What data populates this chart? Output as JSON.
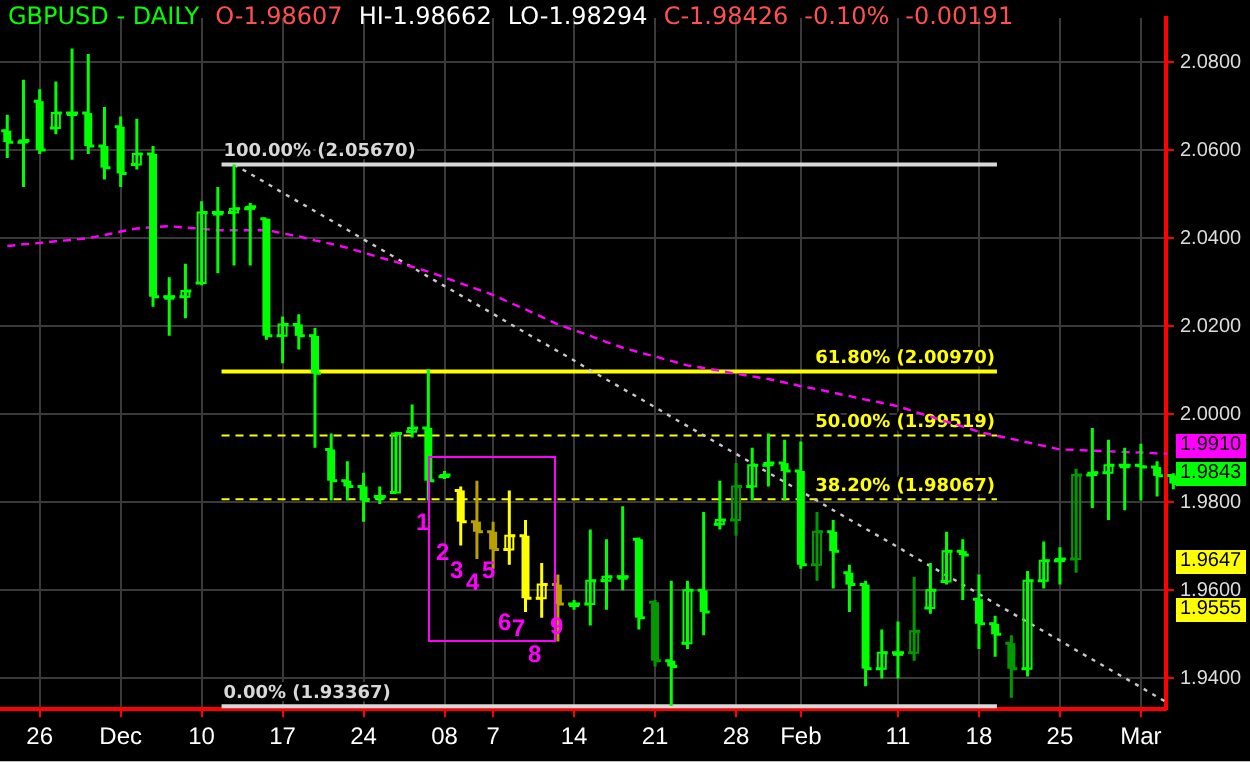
{
  "chart_data": {
    "type": "candlestick",
    "title": "GBPUSD - DAILY",
    "categories": [
      null,
      null,
      "26",
      null,
      null,
      null,
      null,
      "Dec",
      null,
      null,
      null,
      null,
      "10",
      null,
      null,
      null,
      null,
      "17",
      null,
      null,
      null,
      null,
      "24",
      null,
      null,
      null,
      null,
      "08",
      null,
      null,
      "7",
      null,
      null,
      null,
      null,
      "14",
      null,
      null,
      null,
      null,
      "21",
      null,
      null,
      null,
      null,
      "28",
      null,
      null,
      null,
      "Feb",
      null,
      null,
      null,
      null,
      null,
      "11",
      null,
      null,
      null,
      null,
      "18",
      null,
      null,
      null,
      null,
      "25",
      null,
      null,
      null,
      null,
      "Mar",
      null,
      null
    ],
    "ohlc": [
      [
        2.0644,
        2.068,
        2.0582,
        2.0618
      ],
      [
        2.0618,
        2.076,
        2.0516,
        2.0622
      ],
      [
        2.0711,
        2.0738,
        2.0591,
        2.06
      ],
      [
        2.065,
        2.0756,
        2.0636,
        2.0684
      ],
      [
        2.0684,
        2.0831,
        2.0578,
        2.0684
      ],
      [
        2.0684,
        2.0818,
        2.0591,
        2.0609
      ],
      [
        2.0609,
        2.0698,
        2.0533,
        2.056
      ],
      [
        2.0653,
        2.0676,
        2.0516,
        2.0547
      ],
      [
        2.0567,
        2.0671,
        2.0556,
        2.0591
      ],
      [
        2.0591,
        2.0609,
        2.0244,
        2.0267
      ],
      [
        2.0267,
        2.0311,
        2.0178,
        2.0267
      ],
      [
        2.0267,
        2.0342,
        2.0218,
        2.028
      ],
      [
        2.0298,
        2.0484,
        2.0293,
        2.0458
      ],
      [
        2.0458,
        2.0516,
        2.032,
        2.0458
      ],
      [
        2.0458,
        2.0567,
        2.0338,
        2.0467
      ],
      [
        2.0467,
        2.048,
        2.0338,
        2.0471
      ],
      [
        2.0444,
        2.0444,
        2.0169,
        2.0178
      ],
      [
        2.0178,
        2.0222,
        2.0116,
        2.0204
      ],
      [
        2.0204,
        2.0227,
        2.0147,
        2.0178
      ],
      [
        2.0178,
        2.0196,
        1.9924,
        2.0093
      ],
      [
        1.992,
        1.9956,
        1.9804,
        1.9849
      ],
      [
        1.9849,
        1.9893,
        1.9804,
        1.9836
      ],
      [
        1.9836,
        1.9867,
        1.9756,
        1.9804
      ],
      [
        1.9813,
        1.9836,
        1.9796,
        1.9813
      ],
      [
        1.9822,
        1.996,
        1.9822,
        1.9956
      ],
      [
        1.996,
        2.0022,
        1.9947,
        1.9969
      ],
      [
        1.9969,
        2.0102,
        1.9804,
        1.9849
      ],
      [
        1.9858,
        1.9871,
        1.9853,
        1.9862
      ],
      [
        1.9827,
        1.9836,
        1.9702,
        1.9756
      ],
      [
        1.9756,
        1.9849,
        1.9671,
        1.9733
      ],
      [
        1.9733,
        1.9756,
        1.9649,
        1.9693
      ],
      [
        1.9693,
        1.9827,
        1.9658,
        1.9724
      ],
      [
        1.9724,
        1.976,
        1.9551,
        1.9582
      ],
      [
        1.9582,
        1.9662,
        1.9538,
        1.9613
      ],
      [
        1.9613,
        1.9636,
        1.9484,
        1.9569
      ],
      [
        1.9569,
        1.9578,
        1.9556,
        1.9569
      ],
      [
        1.9569,
        1.9738,
        1.952,
        1.9622
      ],
      [
        1.9622,
        1.9716,
        1.9556,
        1.9631
      ],
      [
        1.9631,
        1.9791,
        1.96,
        1.9631
      ],
      [
        1.9716,
        1.972,
        1.9511,
        1.9538
      ],
      [
        1.9573,
        1.9578,
        1.9427,
        1.944
      ],
      [
        1.944,
        1.9622,
        1.9337,
        1.9427
      ],
      [
        1.948,
        1.9622,
        1.9467,
        1.96
      ],
      [
        1.96,
        1.9778,
        1.9498,
        1.9551
      ],
      [
        1.975,
        1.9849,
        1.9738,
        1.976
      ],
      [
        1.976,
        1.9889,
        1.9724,
        1.9836
      ],
      [
        1.9836,
        1.9924,
        1.9804,
        1.9884
      ],
      [
        1.9884,
        1.9956,
        1.9836,
        1.9889
      ],
      [
        1.9889,
        1.9942,
        1.9804,
        1.9871
      ],
      [
        1.9871,
        1.9938,
        1.9649,
        1.9658
      ],
      [
        1.9658,
        1.9778,
        1.9622,
        1.9733
      ],
      [
        1.9733,
        1.976,
        1.9604,
        1.9689
      ],
      [
        1.964,
        1.9658,
        1.9551,
        1.9613
      ],
      [
        1.9613,
        1.9622,
        1.9382,
        1.9422
      ],
      [
        1.9422,
        1.9511,
        1.94,
        1.9458
      ],
      [
        1.9458,
        1.9529,
        1.94,
        1.9458
      ],
      [
        1.9458,
        1.9631,
        1.944,
        1.9507
      ],
      [
        1.956,
        1.9662,
        1.9547,
        1.96
      ],
      [
        1.962,
        1.9733,
        1.9613,
        1.9689
      ],
      [
        1.9689,
        1.9716,
        1.9578,
        1.968
      ],
      [
        1.958,
        1.9636,
        1.9467,
        1.9524
      ],
      [
        1.9524,
        1.9542,
        1.9449,
        1.95
      ],
      [
        1.948,
        1.9498,
        1.9356,
        1.9422
      ],
      [
        1.9422,
        1.9644,
        1.9404,
        1.9622
      ],
      [
        1.9622,
        1.9711,
        1.9604,
        1.9667
      ],
      [
        1.9667,
        1.9698,
        1.9613,
        1.9671
      ],
      [
        1.9671,
        1.9876,
        1.964,
        1.9862
      ],
      [
        1.9862,
        1.9969,
        1.9787,
        1.9867
      ],
      [
        1.9867,
        1.9942,
        1.976,
        1.9884
      ],
      [
        1.9884,
        1.9924,
        1.9782,
        1.9884
      ],
      [
        1.9884,
        1.9933,
        1.9804,
        1.988
      ],
      [
        1.988,
        1.9893,
        1.9813,
        1.986
      ],
      [
        1.98607,
        1.98662,
        1.98294,
        1.98426
      ]
    ],
    "colors": [
      "#00ff00",
      "#00ff00",
      "#00ff00",
      "#00ff00",
      "#00ff00",
      "#00ff00",
      "#00ff00",
      "#00ff00",
      "#00ff00",
      "#00ff00",
      "#00ff00",
      "#00ff00",
      "#00ff00",
      "#00ff00",
      "#00ff00",
      "#00ff00",
      "#00ff00",
      "#00ff00",
      "#00ff00",
      "#00ff00",
      "#00ff00",
      "#00ff00",
      "#00ff00",
      "#00ff00",
      "#00ff00",
      "#00ff00",
      "#00ff00",
      "#00ff00",
      "#ffff00",
      "#b8a000",
      "#b8a000",
      "#ffff00",
      "#ffff00",
      "#ffff00",
      "#b8a000",
      "#00ff00",
      "#00ff00",
      "#00ff00",
      "#00ff00",
      "#00ff00",
      "#009900",
      "#00ff00",
      "#00ff00",
      "#00ff00",
      "#00ff00",
      "#009900",
      "#00ff00",
      "#00ff00",
      "#00ff00",
      "#00ff00",
      "#009900",
      "#00ff00",
      "#00ff00",
      "#00ff00",
      "#00ff00",
      "#00ff00",
      "#009900",
      "#00ff00",
      "#00ff00",
      "#00ff00",
      "#00ff00",
      "#00ff00",
      "#009900",
      "#00ff00",
      "#00ff00",
      "#00ff00",
      "#009900",
      "#00ff00",
      "#00ff00",
      "#00ff00",
      "#00ff00",
      "#00ff00",
      "#00ff00"
    ],
    "series": [
      {
        "type": "line",
        "color": "#ff00ff",
        "line_style": "dashed",
        "values": [
          2.0382,
          2.0386,
          2.0389,
          2.0393,
          2.0396,
          2.04,
          2.0407,
          2.0415,
          2.0422,
          2.0425,
          2.0427,
          2.0424,
          2.0421,
          2.0418,
          2.0418,
          2.0418,
          2.0418,
          2.0411,
          2.0404,
          2.0395,
          2.0387,
          2.0378,
          2.0367,
          2.0356,
          2.0346,
          2.0335,
          2.0324,
          2.0311,
          2.0297,
          2.0284,
          2.0271,
          2.0254,
          2.0238,
          2.0221,
          2.0204,
          2.0191,
          2.0178,
          2.0164,
          2.0151,
          2.0141,
          2.0131,
          2.0121,
          2.0111,
          2.0105,
          2.0099,
          2.0092,
          2.0086,
          2.008,
          2.0072,
          2.0064,
          2.0057,
          2.0049,
          2.0041,
          2.0033,
          2.0026,
          2.0018,
          2.0006,
          1.9995,
          1.9983,
          1.9972,
          1.996,
          1.9952,
          1.9944,
          1.9936,
          1.9928,
          1.992,
          1.9919,
          1.9917,
          1.9916,
          1.9914,
          1.9913,
          1.9911,
          1.991
        ]
      },
      {
        "type": "line",
        "color": "#c8c8c8",
        "line_style": "dotted",
        "values": [
          null,
          null,
          null,
          null,
          null,
          null,
          null,
          null,
          null,
          null,
          null,
          null,
          null,
          null,
          2.0567,
          2.0546,
          2.0525,
          2.0503,
          2.0482,
          2.0461,
          2.044,
          2.0419,
          2.0397,
          2.0376,
          2.0355,
          2.0334,
          2.0312,
          2.0291,
          2.027,
          2.0249,
          2.0228,
          2.0206,
          2.0185,
          2.0164,
          2.0143,
          2.0122,
          2.01,
          2.0079,
          2.0058,
          2.0037,
          2.0016,
          1.9994,
          1.9973,
          1.9952,
          1.9931,
          1.991,
          1.9888,
          1.9867,
          1.9846,
          1.9825,
          1.9804,
          1.9782,
          1.9761,
          1.974,
          1.9719,
          1.9698,
          1.9676,
          1.9655,
          1.9634,
          1.9613,
          1.9592,
          1.957,
          1.9549,
          1.9528,
          1.9507,
          1.9486,
          1.9464,
          1.9443,
          1.9422,
          1.9401,
          1.938,
          1.9358,
          1.9337
        ]
      }
    ],
    "ref_lines": [
      {
        "axis": "y",
        "value": 2.0567,
        "label": "100.00% (2.05670)",
        "color": "#d8d8d8",
        "line_style": "solid"
      },
      {
        "axis": "y",
        "value": 2.0097,
        "label": "61.80% (2.00970)",
        "color": "#ffff00",
        "line_style": "solid"
      },
      {
        "axis": "y",
        "value": 1.99519,
        "label": "50.00% (1.99519)",
        "color": "#ffff00",
        "line_style": "dashed"
      },
      {
        "axis": "y",
        "value": 1.98067,
        "label": "38.20% (1.98067)",
        "color": "#ffff00",
        "line_style": "dashed"
      },
      {
        "axis": "y",
        "value": 1.93367,
        "label": "0.00% (1.93367)",
        "color": "#d8d8d8",
        "line_style": "solid"
      }
    ],
    "annotations": [
      "O-1.98607",
      "HI-1.98662",
      "LO-1.98294",
      "C-1.98426",
      "-0.10%",
      "-0.00191",
      "1",
      "2",
      "3",
      "4",
      "5",
      "6",
      "7",
      "8",
      "9",
      "1.9910",
      "1.9843",
      "1.9647",
      "1.9555"
    ],
    "ylim": [
      1.933,
      2.09
    ],
    "yticks": [
      {
        "value": 1.94,
        "label": "1.9400"
      },
      {
        "value": 1.96,
        "label": "1.9600"
      },
      {
        "value": 1.98,
        "label": "1.9800"
      },
      {
        "value": 2.0,
        "label": "2.0000"
      },
      {
        "value": 2.02,
        "label": "2.0200"
      },
      {
        "value": 2.04,
        "label": "2.0400"
      },
      {
        "value": 2.06,
        "label": "2.0600"
      },
      {
        "value": 2.08,
        "label": "2.0800"
      }
    ],
    "grid": true,
    "legend": false
  }
}
